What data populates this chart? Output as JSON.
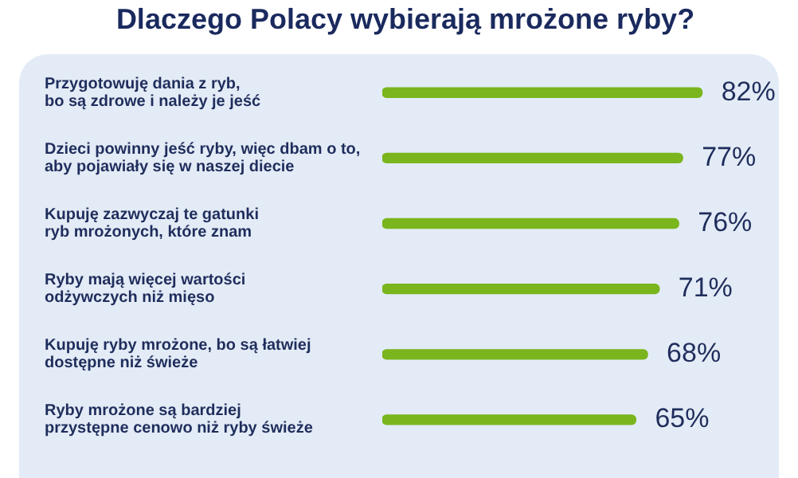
{
  "chart_data": {
    "type": "bar",
    "orientation": "horizontal",
    "title": "Dlaczego Polacy wybierają mrożone ryby?",
    "categories": [
      "Przygotowuję dania z ryb,\nbo są zdrowe i należy je jeść",
      "Dzieci powinny jeść ryby, więc dbam o to,\naby pojawiały się w naszej diecie",
      "Kupuję zazwyczaj te gatunki\nryb mrożonych, które znam",
      "Ryby mają więcej wartości\nodżywczych niż mięso",
      "Kupuję ryby mrożone, bo są łatwiej\ndostępne niż świeże",
      "Ryby mrożone są bardziej\nprzystępne cenowo niż ryby świeże"
    ],
    "values": [
      82,
      77,
      76,
      71,
      68,
      65
    ],
    "color": "#7ab51d",
    "value_labels": [
      "82%",
      "77%",
      "76%",
      "71%",
      "68%",
      "65%"
    ],
    "legend": false
  }
}
